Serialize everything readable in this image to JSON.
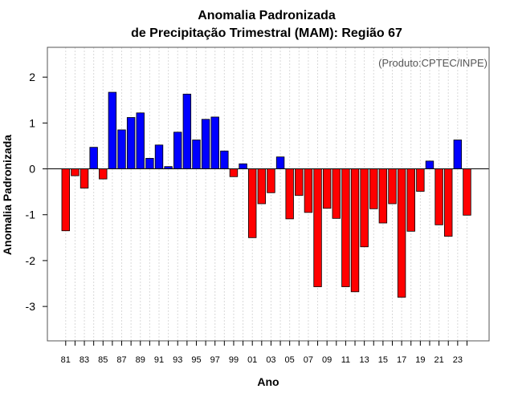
{
  "chart_data": {
    "type": "bar",
    "title_line1": "Anomalia Padronizada",
    "title_line2": "de Precipitação Trimestral (MAM): Região 67",
    "xlabel": "Ano",
    "ylabel": "Anomalia Padronizada",
    "credit": "(Produto:CPTEC/INPE)",
    "ylim": [
      -3.75,
      2.65
    ],
    "yticks": [
      2,
      1,
      0,
      -1,
      -2,
      -3
    ],
    "ytick_labels": [
      "2",
      "1",
      "0",
      "-1",
      "-2",
      "-3"
    ],
    "grid": true,
    "colors": {
      "positive": "#0000ff",
      "negative": "#ff0000"
    },
    "categories": [
      "1981",
      "1982",
      "1983",
      "1984",
      "1985",
      "1986",
      "1987",
      "1988",
      "1989",
      "1990",
      "1991",
      "1992",
      "1993",
      "1994",
      "1995",
      "1996",
      "1997",
      "1998",
      "1999",
      "2000",
      "2001",
      "2002",
      "2003",
      "2004",
      "2005",
      "2006",
      "2007",
      "2008",
      "2009",
      "2010",
      "2011",
      "2012",
      "2013",
      "2014",
      "2015",
      "2016",
      "2017",
      "2018",
      "2019",
      "2020",
      "2021",
      "2022",
      "2023",
      "2024"
    ],
    "xtick_labels": [
      "81",
      "83",
      "85",
      "87",
      "89",
      "91",
      "93",
      "95",
      "97",
      "99",
      "01",
      "03",
      "05",
      "07",
      "09",
      "11",
      "13",
      "15",
      "17",
      "19",
      "21",
      "23"
    ],
    "values": [
      -1.35,
      -0.15,
      -0.42,
      0.47,
      -0.22,
      1.67,
      0.85,
      1.12,
      1.22,
      0.23,
      0.52,
      0.05,
      0.8,
      1.63,
      0.63,
      1.08,
      1.13,
      0.39,
      -0.17,
      0.11,
      -1.5,
      -0.76,
      -0.52,
      0.26,
      -1.09,
      -0.58,
      -0.95,
      -2.57,
      -0.86,
      -1.08,
      -2.57,
      -2.68,
      -1.7,
      -0.87,
      -1.18,
      -0.76,
      -2.8,
      -1.36,
      -0.49,
      0.17,
      -1.22,
      -1.47,
      0.63,
      -1.01
    ]
  }
}
